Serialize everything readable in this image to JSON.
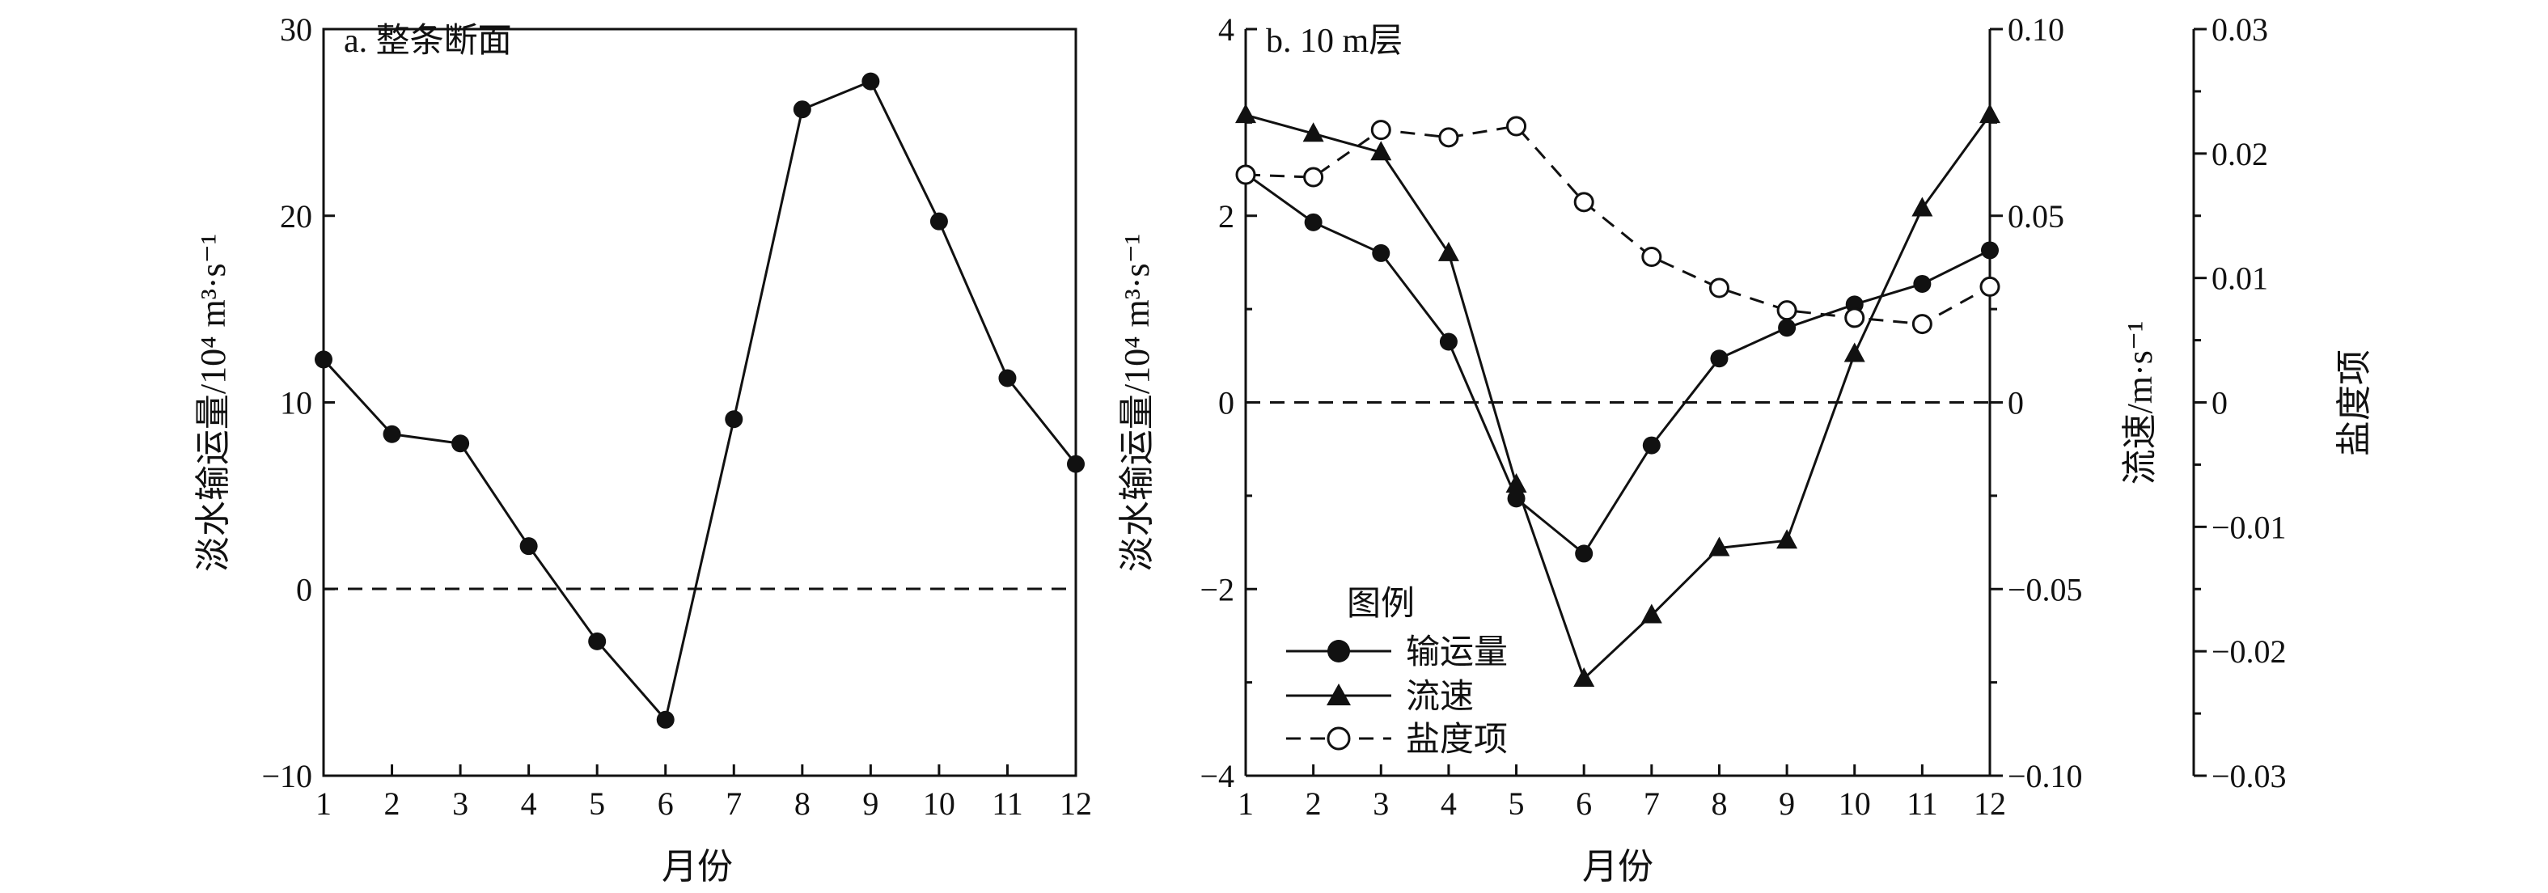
{
  "chart_data": [
    {
      "type": "line",
      "title": "a. 整条断面",
      "xlabel": "月份",
      "ylabel": "淡水输运量/10⁴ m³·s⁻¹",
      "x": [
        1,
        2,
        3,
        4,
        5,
        6,
        7,
        8,
        9,
        10,
        11,
        12
      ],
      "ylim": [
        -10,
        30
      ],
      "yticks": [
        "−10",
        "0",
        "10",
        "20",
        "30"
      ],
      "series": [
        {
          "values": [
            12.3,
            8.3,
            7.8,
            2.3,
            -2.8,
            -7.0,
            9.1,
            25.7,
            27.2,
            19.7,
            11.3,
            6.7
          ]
        }
      ],
      "zero_line": "dashed",
      "grid": false
    },
    {
      "type": "line",
      "title": "b. 10 m层",
      "xlabel": "月份",
      "ylabel": "淡水输运量/10⁴ m³·s⁻¹",
      "ylabel_right1": "流速/m·s⁻¹",
      "ylabel_right2": "盐度项",
      "x": [
        1,
        2,
        3,
        4,
        5,
        6,
        7,
        8,
        9,
        10,
        11,
        12
      ],
      "ylim": [
        -4,
        4
      ],
      "ylim_right1": [
        -0.1,
        0.1
      ],
      "ylim_right2": [
        -0.03,
        0.03
      ],
      "yticks": [
        "−4",
        "−2",
        "0",
        "2",
        "4"
      ],
      "yticks_right1": [
        "−0.10",
        "−0.05",
        "0",
        "0.05",
        "0.10"
      ],
      "yticks_right2": [
        "−0.03",
        "−0.02",
        "−0.01",
        "0",
        "0.01",
        "0.02",
        "0.03"
      ],
      "legend_title": "图例",
      "legend_position": "bottom-left",
      "series": [
        {
          "name": "输运量",
          "axis": "left",
          "marker": "filled-circle",
          "line": "solid",
          "values": [
            2.45,
            1.93,
            1.6,
            0.65,
            -1.03,
            -1.62,
            -0.46,
            0.47,
            0.8,
            1.05,
            1.27,
            1.63
          ]
        },
        {
          "name": "流速",
          "axis": "right1",
          "marker": "filled-triangle",
          "line": "solid",
          "values": [
            0.077,
            0.072,
            0.067,
            0.04,
            -0.022,
            -0.074,
            -0.057,
            -0.039,
            -0.037,
            0.013,
            0.052,
            0.077
          ]
        },
        {
          "name": "盐度项",
          "axis": "right2",
          "marker": "open-circle",
          "line": "dashed",
          "values": [
            0.0183,
            0.0181,
            0.0219,
            0.0213,
            0.0222,
            0.0161,
            0.0117,
            0.0092,
            0.0074,
            0.0068,
            0.0063,
            0.0093
          ]
        }
      ],
      "zero_line": "dashed",
      "grid": false
    }
  ]
}
